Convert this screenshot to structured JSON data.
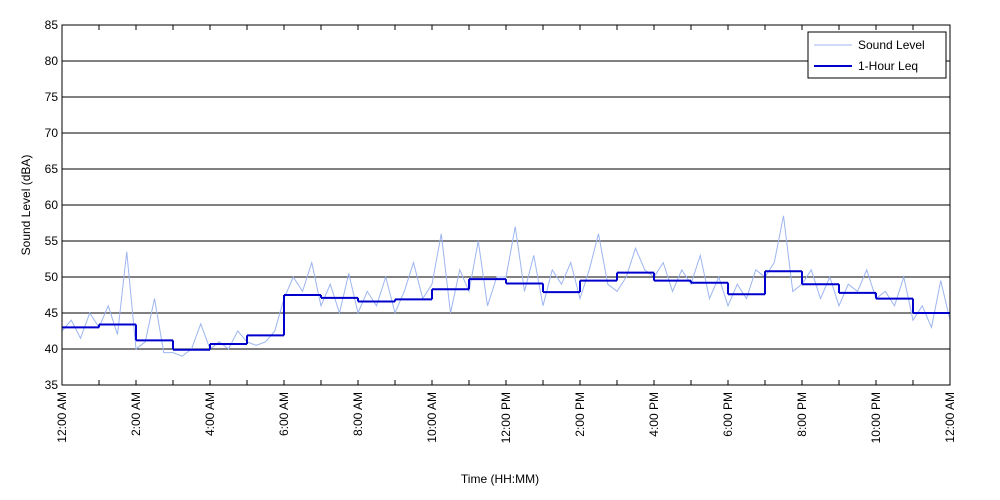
{
  "chart_data": {
    "type": "line",
    "xlabel": "Time (HH:MM)",
    "ylabel": "Sound Level (dBA)",
    "xlim": [
      0,
      24
    ],
    "ylim": [
      35,
      85
    ],
    "yticks": [
      35,
      40,
      45,
      50,
      55,
      60,
      65,
      70,
      75,
      80,
      85
    ],
    "xticks": [
      {
        "value": 0,
        "label": "12:00 AM"
      },
      {
        "value": 1,
        "label": null
      },
      {
        "value": 2,
        "label": "2:00 AM"
      },
      {
        "value": 3,
        "label": null
      },
      {
        "value": 4,
        "label": "4:00 AM"
      },
      {
        "value": 5,
        "label": null
      },
      {
        "value": 6,
        "label": "6:00 AM"
      },
      {
        "value": 7,
        "label": null
      },
      {
        "value": 8,
        "label": "8:00 AM"
      },
      {
        "value": 9,
        "label": null
      },
      {
        "value": 10,
        "label": "10:00 AM"
      },
      {
        "value": 11,
        "label": null
      },
      {
        "value": 12,
        "label": "12:00 PM"
      },
      {
        "value": 13,
        "label": null
      },
      {
        "value": 14,
        "label": "2:00 PM"
      },
      {
        "value": 15,
        "label": null
      },
      {
        "value": 16,
        "label": "4:00 PM"
      },
      {
        "value": 17,
        "label": null
      },
      {
        "value": 18,
        "label": "6:00 PM"
      },
      {
        "value": 19,
        "label": null
      },
      {
        "value": 20,
        "label": "8:00 PM"
      },
      {
        "value": 21,
        "label": null
      },
      {
        "value": 22,
        "label": "10:00 PM"
      },
      {
        "value": 23,
        "label": null
      },
      {
        "value": 24,
        "label": "12:00 AM"
      }
    ],
    "grid": true,
    "legend": "upper right",
    "series": [
      {
        "name": "Sound Level",
        "color": "#9db5f0",
        "style": "line",
        "x": [
          0,
          0.25,
          0.5,
          0.75,
          1,
          1.25,
          1.5,
          1.75,
          2,
          2.25,
          2.5,
          2.75,
          3,
          3.25,
          3.5,
          3.75,
          4,
          4.25,
          4.5,
          4.75,
          5,
          5.25,
          5.5,
          5.75,
          6,
          6.25,
          6.5,
          6.75,
          7,
          7.25,
          7.5,
          7.75,
          8,
          8.25,
          8.5,
          8.75,
          9,
          9.25,
          9.5,
          9.75,
          10,
          10.25,
          10.5,
          10.75,
          11,
          11.25,
          11.5,
          11.75,
          12,
          12.25,
          12.5,
          12.75,
          13,
          13.25,
          13.5,
          13.75,
          14,
          14.25,
          14.5,
          14.75,
          15,
          15.25,
          15.5,
          15.75,
          16,
          16.25,
          16.5,
          16.75,
          17,
          17.25,
          17.5,
          17.75,
          18,
          18.25,
          18.5,
          18.75,
          19,
          19.25,
          19.5,
          19.75,
          20,
          20.25,
          20.5,
          20.75,
          21,
          21.25,
          21.5,
          21.75,
          22,
          22.25,
          22.5,
          22.75,
          23,
          23.25,
          23.5,
          23.75,
          24
        ],
        "values": [
          42.5,
          44,
          41.5,
          45,
          43,
          46,
          42,
          53.5,
          40,
          41,
          47,
          39.5,
          39.5,
          39,
          40,
          43.5,
          40,
          41,
          40,
          42.5,
          41,
          40.5,
          41,
          42.5,
          47,
          50,
          48,
          52,
          46,
          49,
          45,
          50.5,
          45,
          48,
          46,
          50,
          45,
          48,
          52,
          47,
          49,
          56,
          45,
          51,
          48,
          55,
          46,
          50,
          50,
          57,
          48,
          53,
          46,
          51,
          49,
          52,
          47,
          51,
          56,
          49,
          48,
          50,
          54,
          51,
          50,
          52,
          48,
          51,
          49,
          53,
          47,
          50,
          46,
          49,
          47,
          51,
          50,
          52,
          58.5,
          48,
          49,
          51,
          47,
          50,
          46,
          49,
          48,
          51,
          47,
          48,
          46,
          50,
          44,
          46,
          43,
          49.5,
          44
        ]
      },
      {
        "name": "1-Hour Leq",
        "color": "#0000cc",
        "style": "step",
        "x": [
          0,
          1,
          2,
          3,
          4,
          5,
          6,
          7,
          8,
          9,
          10,
          11,
          12,
          13,
          14,
          15,
          16,
          17,
          18,
          19,
          20,
          21,
          22,
          23
        ],
        "values": [
          43,
          43.4,
          41.2,
          39.9,
          40.7,
          41.9,
          47.5,
          47.1,
          46.6,
          46.9,
          48.3,
          49.7,
          49.1,
          47.9,
          49.5,
          50.6,
          49.5,
          49.2,
          47.6,
          50.8,
          49,
          47.8,
          47,
          45
        ]
      }
    ]
  }
}
